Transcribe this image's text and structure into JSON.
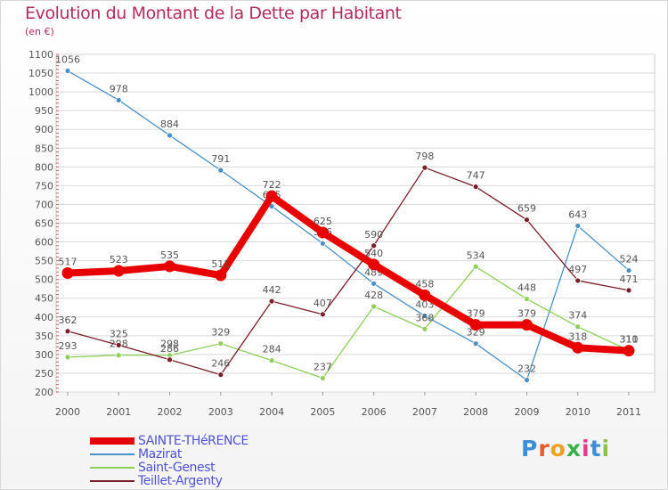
{
  "header": {
    "title": "Evolution du Montant de la Dette par Habitant",
    "subtitle": "(en €)"
  },
  "brand": {
    "letters": [
      "P",
      "r",
      "o",
      "x",
      "i",
      "t",
      "i"
    ],
    "colors": [
      "#3b8fd9",
      "#e85a2a",
      "#f0a020",
      "#3bb04a",
      "#e83a8a",
      "#3b8fd9",
      "#8bc34a"
    ]
  },
  "colors": {
    "title": "#b52a5b",
    "legend_text": "#5050d8",
    "grid": "#dadada",
    "axis_text": "#555555"
  },
  "chart_data": {
    "type": "line",
    "title": "Evolution du Montant de la Dette par Habitant",
    "subtitle": "(en €)",
    "xlabel": "",
    "ylabel": "",
    "x": [
      "2000",
      "2001",
      "2002",
      "2003",
      "2004",
      "2005",
      "2006",
      "2007",
      "2008",
      "2009",
      "2010",
      "2011"
    ],
    "ylim": [
      200,
      1100
    ],
    "yticks": [
      200,
      250,
      300,
      350,
      400,
      450,
      500,
      550,
      600,
      650,
      700,
      750,
      800,
      850,
      900,
      950,
      1000,
      1050,
      1100
    ],
    "grid": "horizontal",
    "legend_position": "bottom-left",
    "series": [
      {
        "name": "Mazirat",
        "color": "#4a90c8",
        "values": [
          1056,
          978,
          884,
          791,
          695,
          596,
          489,
          403,
          329,
          232,
          643,
          524
        ]
      },
      {
        "name": "Saint-Genest",
        "color": "#8ed05a",
        "values": [
          293,
          298,
          298,
          329,
          284,
          237,
          428,
          368,
          534,
          448,
          374,
          311
        ]
      },
      {
        "name": "Teillet-Argenty",
        "color": "#7a1e2a",
        "values": [
          362,
          325,
          286,
          246,
          442,
          407,
          590,
          798,
          747,
          659,
          497,
          471
        ]
      },
      {
        "name": "SAINTE-THéRENCE",
        "color": "#e80000",
        "values": [
          517,
          523,
          535,
          511,
          722,
          625,
          540,
          458,
          379,
          379,
          318,
          310
        ]
      }
    ],
    "legend": [
      "SAINTE-THéRENCE",
      "Mazirat",
      "Saint-Genest",
      "Teillet-Argenty"
    ]
  }
}
